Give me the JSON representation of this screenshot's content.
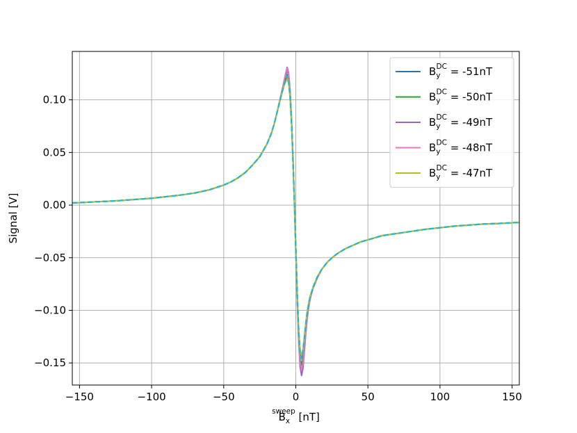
{
  "chart_data": {
    "type": "line",
    "xlabel": {
      "main": "B",
      "sub": "x",
      "sup": "sweep",
      "unit": " [nT]"
    },
    "ylabel": "Signal [V]",
    "xlim": [
      -155,
      155
    ],
    "ylim": [
      -0.171,
      0.146
    ],
    "xticks": [
      -150,
      -100,
      -50,
      0,
      50,
      100,
      150
    ],
    "xtick_labels": [
      "−150",
      "−100",
      "−50",
      "0",
      "50",
      "100",
      "150"
    ],
    "yticks": [
      -0.15,
      -0.1,
      -0.05,
      0.0,
      0.05,
      0.1
    ],
    "ytick_labels": [
      "−0.15",
      "−0.10",
      "−0.05",
      "0.00",
      "0.05",
      "0.10"
    ],
    "grid": true,
    "legend_position": "top-right",
    "x": [
      -155,
      -140,
      -125,
      -110,
      -100,
      -90,
      -80,
      -70,
      -60,
      -50,
      -45,
      -40,
      -35,
      -30,
      -25,
      -20,
      -17,
      -15,
      -13,
      -11,
      -9,
      -8,
      -7,
      -6,
      -5,
      -4,
      -3,
      -2,
      -1,
      0,
      1,
      2,
      3,
      4,
      5,
      6,
      7,
      8,
      9,
      10,
      12,
      15,
      18,
      22,
      26,
      30,
      35,
      40,
      45,
      50,
      60,
      70,
      80,
      90,
      100,
      110,
      120,
      130,
      140,
      155
    ],
    "series": [
      {
        "name": "-51nT",
        "color": "#1f77b4",
        "dashed": false,
        "values": [
          0.002,
          0.003,
          0.004,
          0.0055,
          0.0065,
          0.008,
          0.0095,
          0.0115,
          0.0145,
          0.019,
          0.022,
          0.026,
          0.031,
          0.038,
          0.046,
          0.058,
          0.068,
          0.077,
          0.088,
          0.099,
          0.11,
          0.115,
          0.119,
          0.124,
          0.12,
          0.105,
          0.08,
          0.045,
          0.005,
          -0.04,
          -0.085,
          -0.12,
          -0.14,
          -0.145,
          -0.138,
          -0.125,
          -0.112,
          -0.101,
          -0.093,
          -0.087,
          -0.078,
          -0.068,
          -0.061,
          -0.054,
          -0.049,
          -0.045,
          -0.041,
          -0.038,
          -0.035,
          -0.033,
          -0.029,
          -0.027,
          -0.025,
          -0.023,
          -0.0215,
          -0.02,
          -0.019,
          -0.018,
          -0.0175,
          -0.0165
        ]
      },
      {
        "name": "-50nT",
        "color": "#2ca02c",
        "dashed": false,
        "values": [
          0.002,
          0.003,
          0.004,
          0.0055,
          0.0065,
          0.008,
          0.0095,
          0.0115,
          0.0145,
          0.019,
          0.022,
          0.026,
          0.031,
          0.038,
          0.046,
          0.058,
          0.068,
          0.077,
          0.088,
          0.1,
          0.112,
          0.118,
          0.123,
          0.128,
          0.124,
          0.108,
          0.082,
          0.046,
          0.004,
          -0.042,
          -0.088,
          -0.124,
          -0.146,
          -0.152,
          -0.145,
          -0.13,
          -0.116,
          -0.104,
          -0.095,
          -0.088,
          -0.079,
          -0.069,
          -0.061,
          -0.054,
          -0.049,
          -0.045,
          -0.041,
          -0.038,
          -0.035,
          -0.033,
          -0.029,
          -0.027,
          -0.025,
          -0.023,
          -0.0215,
          -0.02,
          -0.019,
          -0.018,
          -0.0175,
          -0.0165
        ]
      },
      {
        "name": "-49nT",
        "color": "#9467bd",
        "dashed": false,
        "values": [
          0.002,
          0.003,
          0.004,
          0.0055,
          0.0065,
          0.008,
          0.0095,
          0.0115,
          0.0145,
          0.019,
          0.022,
          0.026,
          0.031,
          0.038,
          0.046,
          0.058,
          0.068,
          0.077,
          0.088,
          0.1,
          0.112,
          0.119,
          0.125,
          0.131,
          0.126,
          0.11,
          0.083,
          0.046,
          0.003,
          -0.044,
          -0.092,
          -0.13,
          -0.154,
          -0.162,
          -0.155,
          -0.138,
          -0.121,
          -0.107,
          -0.097,
          -0.089,
          -0.079,
          -0.069,
          -0.061,
          -0.054,
          -0.049,
          -0.045,
          -0.041,
          -0.038,
          -0.035,
          -0.033,
          -0.029,
          -0.027,
          -0.025,
          -0.023,
          -0.0215,
          -0.02,
          -0.019,
          -0.018,
          -0.0175,
          -0.0165
        ]
      },
      {
        "name": "-48nT",
        "color": "#e377c2",
        "dashed": false,
        "values": [
          0.002,
          0.003,
          0.004,
          0.0055,
          0.0065,
          0.008,
          0.0095,
          0.0115,
          0.0145,
          0.019,
          0.022,
          0.026,
          0.031,
          0.038,
          0.046,
          0.058,
          0.068,
          0.077,
          0.088,
          0.1,
          0.112,
          0.119,
          0.124,
          0.13,
          0.125,
          0.109,
          0.082,
          0.046,
          0.003,
          -0.043,
          -0.09,
          -0.127,
          -0.15,
          -0.157,
          -0.15,
          -0.134,
          -0.119,
          -0.106,
          -0.096,
          -0.089,
          -0.079,
          -0.069,
          -0.061,
          -0.054,
          -0.049,
          -0.045,
          -0.041,
          -0.038,
          -0.035,
          -0.033,
          -0.029,
          -0.027,
          -0.025,
          -0.023,
          -0.0215,
          -0.02,
          -0.019,
          -0.018,
          -0.0175,
          -0.0165
        ]
      },
      {
        "name": "-47nT",
        "color": "#bcbd22",
        "dashed": false,
        "values": [
          0.002,
          0.003,
          0.004,
          0.0055,
          0.0065,
          0.008,
          0.0095,
          0.0115,
          0.0145,
          0.019,
          0.022,
          0.026,
          0.031,
          0.038,
          0.046,
          0.058,
          0.068,
          0.077,
          0.088,
          0.099,
          0.109,
          0.114,
          0.117,
          0.12,
          0.116,
          0.102,
          0.078,
          0.044,
          0.005,
          -0.039,
          -0.083,
          -0.118,
          -0.138,
          -0.143,
          -0.137,
          -0.124,
          -0.111,
          -0.1,
          -0.092,
          -0.086,
          -0.078,
          -0.068,
          -0.061,
          -0.054,
          -0.049,
          -0.045,
          -0.041,
          -0.038,
          -0.035,
          -0.033,
          -0.029,
          -0.027,
          -0.025,
          -0.023,
          -0.0215,
          -0.02,
          -0.019,
          -0.018,
          -0.0175,
          -0.0165
        ]
      },
      {
        "name": "",
        "color": "#17becf",
        "dashed": true,
        "values": [
          0.002,
          0.003,
          0.004,
          0.0055,
          0.0065,
          0.008,
          0.0095,
          0.0115,
          0.0145,
          0.019,
          0.022,
          0.026,
          0.031,
          0.038,
          0.046,
          0.058,
          0.068,
          0.077,
          0.088,
          0.099,
          0.11,
          0.115,
          0.119,
          0.123,
          0.119,
          0.104,
          0.079,
          0.045,
          0.004,
          -0.04,
          -0.085,
          -0.12,
          -0.14,
          -0.146,
          -0.139,
          -0.126,
          -0.113,
          -0.102,
          -0.094,
          -0.087,
          -0.078,
          -0.068,
          -0.061,
          -0.054,
          -0.049,
          -0.045,
          -0.041,
          -0.038,
          -0.035,
          -0.033,
          -0.029,
          -0.027,
          -0.025,
          -0.023,
          -0.0215,
          -0.02,
          -0.019,
          -0.018,
          -0.0175,
          -0.0165
        ]
      }
    ],
    "legend": {
      "entries": [
        {
          "main": "B",
          "sub": "y",
          "sup": "DC",
          "value": " = -51nT",
          "color": "#1f77b4"
        },
        {
          "main": "B",
          "sub": "y",
          "sup": "DC",
          "value": " = -50nT",
          "color": "#2ca02c"
        },
        {
          "main": "B",
          "sub": "y",
          "sup": "DC",
          "value": " = -49nT",
          "color": "#9467bd"
        },
        {
          "main": "B",
          "sub": "y",
          "sup": "DC",
          "value": " = -48nT",
          "color": "#e377c2"
        },
        {
          "main": "B",
          "sub": "y",
          "sup": "DC",
          "value": " = -47nT",
          "color": "#bcbd22"
        }
      ]
    }
  }
}
